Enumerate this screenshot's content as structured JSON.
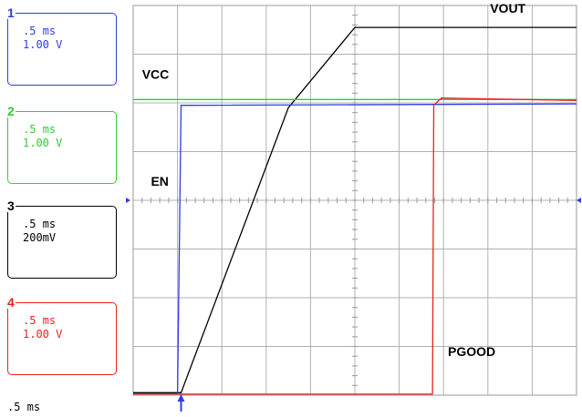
{
  "channels": [
    {
      "number": "1",
      "time": ".5 ms",
      "volts": "1.00 V",
      "color": "#2d3ce6"
    },
    {
      "number": "2",
      "time": ".5 ms",
      "volts": "1.00 V",
      "color": "#33cc33"
    },
    {
      "number": "3",
      "time": ".5 ms",
      "volts": "200mV",
      "color": "#000000"
    },
    {
      "number": "4",
      "time": ".5 ms",
      "volts": "1.00 V",
      "color": "#e8221c"
    }
  ],
  "timebase": ".5 ms",
  "chart_data": {
    "type": "line",
    "grid": true,
    "x_divisions": 10,
    "y_divisions": 8,
    "xlim": [
      0,
      10
    ],
    "ylim": [
      0,
      8
    ],
    "trigger_x": 1.08,
    "series": [
      {
        "name": "VOUT",
        "color": "#000000",
        "x": [
          0,
          1.08,
          3.5,
          5.0,
          10
        ],
        "y": [
          0.05,
          0.05,
          5.9,
          7.55,
          7.55
        ]
      },
      {
        "name": "VCC",
        "color": "#33cc33",
        "x": [
          0,
          10
        ],
        "y": [
          6.07,
          6.07
        ]
      },
      {
        "name": "EN",
        "color": "#2d3ce6",
        "x": [
          0,
          1.0,
          1.08,
          1.2,
          10
        ],
        "y": [
          0.02,
          0.02,
          5.95,
          5.95,
          5.98
        ]
      },
      {
        "name": "PGOOD",
        "color": "#e8221c",
        "x": [
          0,
          6.75,
          6.78,
          6.95,
          10
        ],
        "y": [
          0.02,
          0.02,
          5.95,
          6.1,
          6.05
        ]
      }
    ],
    "annotations": [
      {
        "text": "VOUT",
        "x": 8.05,
        "y": 7.85
      },
      {
        "text": "VCC",
        "x": 0.2,
        "y": 6.5
      },
      {
        "text": "EN",
        "x": 0.4,
        "y": 4.3
      },
      {
        "text": "PGOOD",
        "x": 7.1,
        "y": 0.8
      }
    ]
  }
}
